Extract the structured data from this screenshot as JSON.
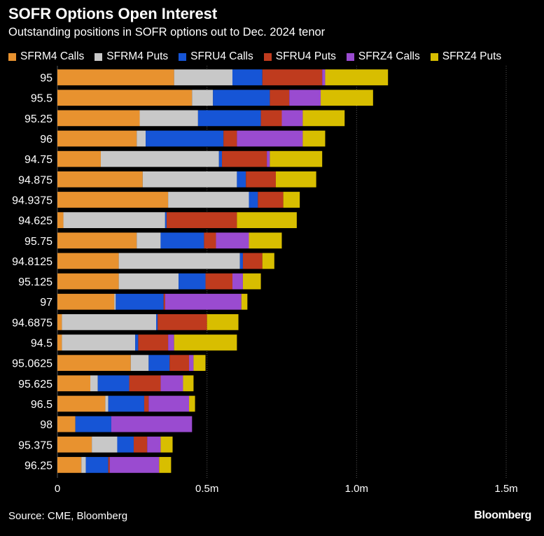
{
  "chart_data": {
    "type": "bar",
    "orientation": "horizontal",
    "stacked": true,
    "title": "SOFR Options Open Interest",
    "subtitle": "Outstanding positions in SOFR options out to Dec. 2024 tenor",
    "categories": [
      "95",
      "95.5",
      "95.25",
      "96",
      "94.75",
      "94.875",
      "94.9375",
      "94.625",
      "95.75",
      "94.8125",
      "95.125",
      "97",
      "94.6875",
      "94.5",
      "95.0625",
      "95.625",
      "96.5",
      "98",
      "95.375",
      "96.25"
    ],
    "series": [
      {
        "name": "SFRM4 Calls",
        "color": "#E8922F",
        "values": [
          390000,
          450000,
          275000,
          265000,
          145000,
          285000,
          370000,
          20000,
          265000,
          205000,
          205000,
          190000,
          15000,
          15000,
          245000,
          110000,
          160000,
          60000,
          115000,
          80000
        ]
      },
      {
        "name": "SFRM4 Puts",
        "color": "#C8C8C8",
        "values": [
          195000,
          70000,
          195000,
          30000,
          395000,
          315000,
          270000,
          340000,
          80000,
          405000,
          200000,
          5000,
          315000,
          245000,
          60000,
          25000,
          10000,
          0,
          85000,
          15000
        ]
      },
      {
        "name": "SFRU4 Calls",
        "color": "#1655D6",
        "values": [
          100000,
          190000,
          210000,
          260000,
          10000,
          30000,
          30000,
          5000,
          145000,
          10000,
          90000,
          160000,
          5000,
          10000,
          70000,
          105000,
          120000,
          120000,
          55000,
          75000
        ]
      },
      {
        "name": "SFRU4 Puts",
        "color": "#BF3B1E",
        "values": [
          200000,
          65000,
          70000,
          45000,
          150000,
          100000,
          85000,
          235000,
          40000,
          65000,
          90000,
          5000,
          165000,
          100000,
          65000,
          105000,
          15000,
          0,
          45000,
          5000
        ]
      },
      {
        "name": "SFRZ4 Calls",
        "color": "#9A4BD0",
        "values": [
          10000,
          105000,
          70000,
          220000,
          10000,
          0,
          0,
          0,
          110000,
          0,
          35000,
          255000,
          0,
          20000,
          15000,
          75000,
          135000,
          270000,
          45000,
          165000
        ]
      },
      {
        "name": "SFRZ4 Puts",
        "color": "#D8BE00",
        "values": [
          210000,
          175000,
          140000,
          75000,
          175000,
          135000,
          55000,
          200000,
          110000,
          40000,
          60000,
          20000,
          105000,
          210000,
          40000,
          35000,
          20000,
          0,
          40000,
          40000
        ]
      }
    ],
    "xlim": [
      0,
      1500000
    ],
    "xticks": [
      0,
      500000,
      1000000,
      1500000
    ],
    "xtick_labels": [
      "0",
      "0.5m",
      "1.0m",
      "1.5m"
    ],
    "grid": "vertical",
    "legend_placement": "top"
  },
  "source": "Source: CME, Bloomberg",
  "brand": "Bloomberg"
}
